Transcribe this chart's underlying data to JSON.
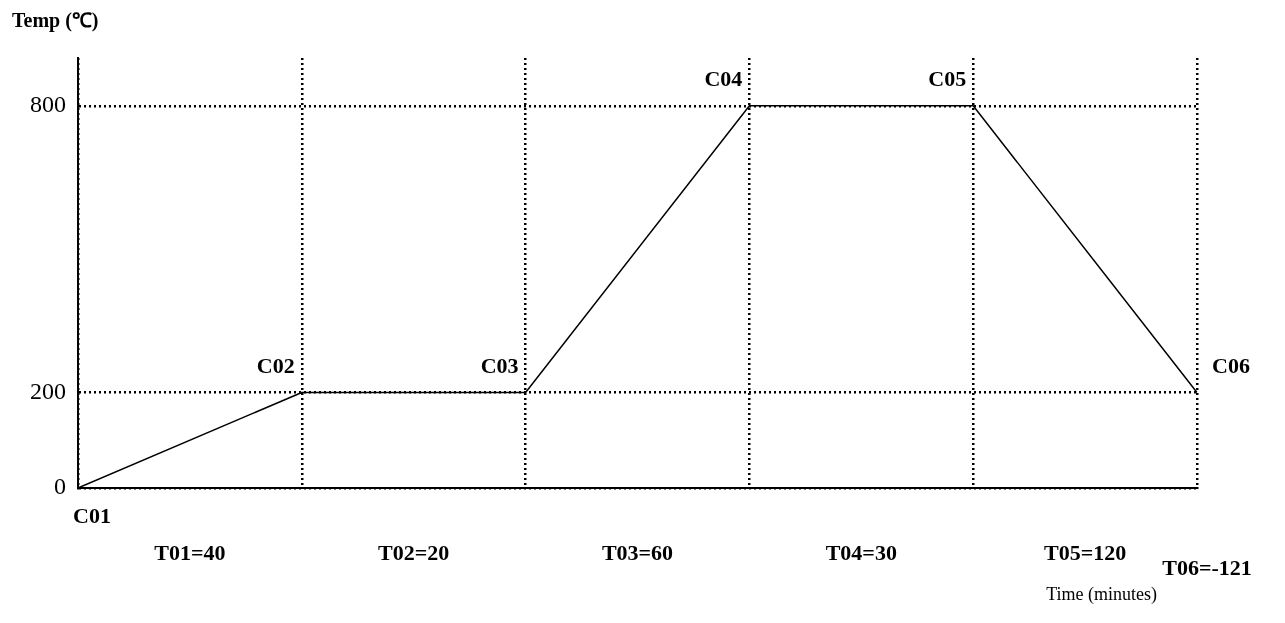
{
  "chart_data": {
    "type": "line",
    "ylabel": "Temp (℃)",
    "xlabel": "Time (minutes)",
    "categories": [
      null,
      null,
      null,
      null,
      null,
      null
    ],
    "series": [
      {
        "color": "#000000",
        "values": [
          0,
          200,
          200,
          800,
          800,
          200
        ]
      }
    ],
    "ylim": [
      0,
      900
    ],
    "yticks": [
      0,
      200,
      800
    ],
    "tick_labels": "y",
    "grid": true,
    "legend": false,
    "annotations": [
      "C01",
      "C02",
      "C03",
      "C04",
      "C05",
      "C06",
      "T01=40",
      "T02=20",
      "T03=60",
      "T04=30",
      "T05=120",
      "T06=-121"
    ]
  }
}
